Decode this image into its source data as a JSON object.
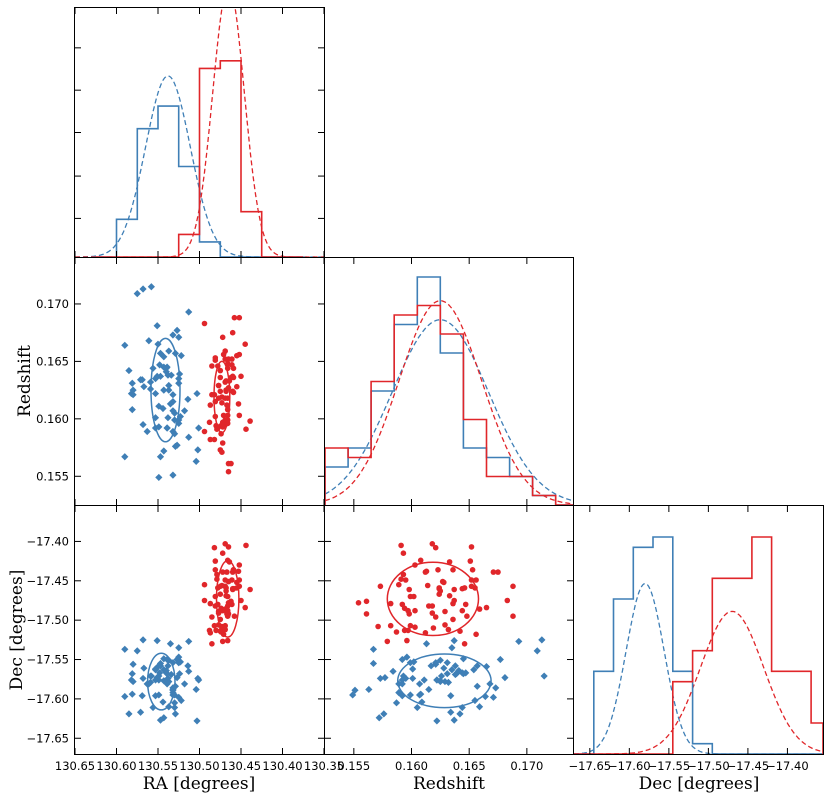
{
  "chart_data": {
    "type": "corner_plot",
    "description": "Triangle plot of RA, Redshift and Dec for two galaxy populations",
    "colors": {
      "blue": "#3f7fb6",
      "red": "#e0262a"
    },
    "axes": {
      "ra": {
        "label": "RA [degrees]",
        "range": [
          130.65,
          130.35
        ],
        "ticks": [
          130.65,
          130.6,
          130.55,
          130.5,
          130.45,
          130.4,
          130.35
        ],
        "tick_labels": [
          "130.65",
          "130.60",
          "130.55",
          "130.50",
          "130.45",
          "130.40",
          "130.35"
        ]
      },
      "z": {
        "label": "Redshift",
        "range": [
          0.1525,
          0.174
        ],
        "ticks": [
          0.155,
          0.16,
          0.165,
          0.17
        ],
        "tick_labels": [
          "0.155",
          "0.160",
          "0.165",
          "0.170"
        ]
      },
      "dec": {
        "label": "Dec [degrees]",
        "range": [
          -17.67,
          -17.355
        ],
        "ticks": [
          -17.65,
          -17.6,
          -17.55,
          -17.5,
          -17.45,
          -17.4
        ],
        "tick_labels": [
          "−17.65",
          "−17.60",
          "−17.55",
          "−17.50",
          "−17.45",
          "−17.40"
        ]
      }
    },
    "ra_hist": {
      "bin_edges": [
        130.625,
        130.6,
        130.575,
        130.55,
        130.525,
        130.5,
        130.475,
        130.45,
        130.425,
        130.4,
        130.375
      ],
      "blue": [
        0,
        5,
        17,
        20,
        12,
        2,
        0,
        0,
        0,
        0
      ],
      "red": [
        0,
        0,
        0,
        0,
        3,
        25,
        26,
        6,
        0,
        0
      ],
      "ymax": 33,
      "blue_gauss": {
        "mu": 130.538,
        "sigma": 0.027,
        "peak": 24
      },
      "red_gauss": {
        "mu": 130.465,
        "sigma": 0.019,
        "peak": 36
      }
    },
    "z_hist": {
      "bin_edges": [
        0.1525,
        0.1545,
        0.1565,
        0.1585,
        0.1605,
        0.1625,
        0.1645,
        0.1665,
        0.1685,
        0.1705,
        0.1725,
        0.174
      ],
      "blue": [
        4,
        6,
        12,
        19,
        24,
        16,
        6,
        5,
        3,
        1,
        0
      ],
      "red": [
        6,
        5,
        13,
        20,
        21,
        18,
        9,
        3,
        3,
        1,
        0
      ],
      "ymax": 26,
      "blue_gauss": {
        "mu": 0.1625,
        "sigma": 0.0042,
        "peak": 19.5
      },
      "red_gauss": {
        "mu": 0.1625,
        "sigma": 0.0036,
        "peak": 21.5
      }
    },
    "dec_hist": {
      "bin_edges": [
        -17.67,
        -17.645,
        -17.62,
        -17.595,
        -17.57,
        -17.545,
        -17.52,
        -17.495,
        -17.47,
        -17.445,
        -17.42,
        -17.395,
        -17.37,
        -17.355
      ],
      "blue": [
        0,
        8,
        15,
        20,
        21,
        8,
        1,
        0,
        0,
        0,
        0,
        0,
        0
      ],
      "red": [
        0,
        0,
        0,
        0,
        0,
        7,
        10,
        17,
        17,
        21,
        8,
        8,
        3
      ],
      "ymax": 24,
      "blue_gauss": {
        "mu": -17.58,
        "sigma": 0.024,
        "peak": 16.5
      },
      "red_gauss": {
        "mu": -17.47,
        "sigma": 0.04,
        "peak": 13.8
      }
    },
    "ellipses": {
      "ra_z": {
        "blue": {
          "cx": 130.541,
          "cy": 0.1625,
          "rx": 0.0175,
          "ry": 0.0045
        },
        "red": {
          "cx": 130.473,
          "cy": 0.1619,
          "rx": 0.0095,
          "ry": 0.0031
        }
      },
      "ra_dec": {
        "blue": {
          "cx": 130.546,
          "cy": -17.578,
          "rx": 0.0165,
          "ry": 0.036
        },
        "red": {
          "cx": 130.466,
          "cy": -17.473,
          "rx": 0.0135,
          "ry": 0.0485
        }
      },
      "z_dec": {
        "blue": {
          "cx": 0.16285,
          "cy": -17.577,
          "rx": 0.00405,
          "ry": 0.034
        },
        "red": {
          "cx": 0.16185,
          "cy": -17.473,
          "rx": 0.00395,
          "ry": 0.0465
        }
      }
    },
    "points": {
      "blue": [
        [
          130.568,
          0.1713,
          -17.525
        ],
        [
          130.551,
          0.1681,
          -17.573
        ],
        [
          130.581,
          0.1631,
          -17.568
        ],
        [
          130.553,
          0.1601,
          -17.562
        ],
        [
          130.58,
          0.1621,
          -17.556
        ],
        [
          130.553,
          0.1635,
          -17.563
        ],
        [
          130.559,
          0.1626,
          -17.571
        ],
        [
          130.559,
          0.1632,
          -17.579
        ],
        [
          130.569,
          0.1634,
          -17.596
        ],
        [
          130.527,
          0.1677,
          -17.55
        ],
        [
          130.532,
          0.1673,
          -17.586
        ],
        [
          130.532,
          0.1551,
          -17.589
        ],
        [
          130.547,
          0.1567,
          -17.555
        ],
        [
          130.538,
          0.1638,
          -17.558
        ],
        [
          130.525,
          0.1671,
          -17.598
        ],
        [
          130.549,
          0.1549,
          -17.595
        ],
        [
          130.502,
          0.1573,
          -17.574
        ],
        [
          130.524,
          0.1639,
          -17.568
        ],
        [
          130.529,
          0.1576,
          -17.619
        ],
        [
          130.532,
          0.1621,
          -17.554
        ],
        [
          130.568,
          0.1595,
          -17.574
        ],
        [
          130.518,
          0.1607,
          -17.581
        ],
        [
          130.59,
          0.1567,
          -17.537
        ],
        [
          130.553,
          0.1592,
          -17.596
        ],
        [
          130.537,
          0.1629,
          -17.578
        ],
        [
          130.548,
          0.1647,
          -17.567
        ],
        [
          130.585,
          0.1642,
          -17.619
        ],
        [
          130.549,
          0.1611,
          -17.576
        ],
        [
          130.532,
          0.1589,
          -17.592
        ],
        [
          130.553,
          0.1622,
          -17.576
        ],
        [
          130.525,
          0.1599,
          -17.554
        ],
        [
          130.551,
          0.1637,
          -17.526
        ],
        [
          130.53,
          0.1605,
          -17.611
        ],
        [
          130.503,
          0.1622,
          -17.628
        ],
        [
          130.571,
          0.1634,
          -17.617
        ],
        [
          130.556,
          0.1644,
          -17.611
        ],
        [
          130.532,
          0.1615,
          -17.588
        ],
        [
          130.535,
          0.1613,
          -17.53
        ],
        [
          130.547,
          0.1637,
          -17.627
        ],
        [
          130.567,
          0.1628,
          -17.561
        ],
        [
          130.534,
          0.1638,
          -17.569
        ],
        [
          130.514,
          0.1617,
          -17.558
        ],
        [
          130.543,
          0.1645,
          -17.549
        ],
        [
          130.523,
          0.1602,
          -17.553
        ],
        [
          130.532,
          0.1607,
          -17.595
        ],
        [
          130.53,
          0.1587,
          -17.605
        ],
        [
          130.513,
          0.1584,
          -17.565
        ],
        [
          130.522,
          0.1655,
          -17.602
        ],
        [
          130.561,
          0.1668,
          -17.581
        ],
        [
          130.59,
          0.1664,
          -17.597
        ],
        [
          130.582,
          0.1622,
          -17.576
        ],
        [
          130.525,
          0.1596,
          -17.547
        ],
        [
          130.537,
          0.1659,
          -17.61
        ],
        [
          130.563,
          0.1589,
          -17.581
        ],
        [
          130.581,
          0.1608,
          -17.594
        ],
        [
          130.525,
          0.1635,
          -17.535
        ],
        [
          130.504,
          0.1563,
          -17.588
        ],
        [
          130.543,
          0.1572,
          -17.624
        ],
        [
          130.538,
          0.1601,
          -17.574
        ],
        [
          130.54,
          0.1641,
          -17.564
        ],
        [
          130.539,
          0.1592,
          -17.55
        ],
        [
          130.537,
          0.1625,
          -17.551
        ],
        [
          130.543,
          0.1654,
          -17.563
        ],
        [
          130.549,
          0.1593,
          -17.571
        ],
        [
          130.575,
          0.1709,
          -17.539
        ],
        [
          130.58,
          0.1625,
          -17.578
        ],
        [
          130.53,
          0.1599,
          -17.595
        ],
        [
          130.543,
          0.1625,
          -17.577
        ],
        [
          130.539,
          0.1592,
          -17.581
        ],
        [
          130.529,
          0.1657,
          -17.584
        ],
        [
          130.513,
          0.1693,
          -17.527
        ],
        [
          130.527,
          0.1577,
          -17.573
        ],
        [
          130.525,
          0.1631,
          -17.554
        ],
        [
          130.544,
          0.1609,
          -17.604
        ],
        [
          130.54,
          0.1644,
          -17.567
        ],
        [
          130.547,
          0.1657,
          -17.558
        ],
        [
          130.501,
          0.1592,
          -17.576
        ],
        [
          130.558,
          0.1715,
          -17.571
        ],
        [
          130.539,
          0.1645,
          -17.568
        ],
        [
          130.55,
          0.1665,
          -17.559
        ]
      ],
      "red": [
        [
          130.452,
          0.1656,
          -17.449
        ],
        [
          130.439,
          0.1598,
          -17.461
        ],
        [
          130.46,
          0.1637,
          -17.461
        ],
        [
          130.452,
          0.1603,
          -17.43
        ],
        [
          130.482,
          0.1621,
          -17.408
        ],
        [
          130.481,
          0.1651,
          -17.425
        ],
        [
          130.459,
          0.1644,
          -17.46
        ],
        [
          130.458,
          0.1688,
          -17.495
        ],
        [
          130.494,
          0.1589,
          -17.455
        ],
        [
          130.453,
          0.1613,
          -17.438
        ],
        [
          130.46,
          0.1675,
          -17.439
        ],
        [
          130.494,
          0.1683,
          -17.475
        ],
        [
          130.481,
          0.1653,
          -17.436
        ],
        [
          130.455,
          0.1655,
          -17.459
        ],
        [
          130.461,
          0.1652,
          -17.449
        ],
        [
          130.466,
          0.1618,
          -17.482
        ],
        [
          130.468,
          0.1633,
          -17.469
        ],
        [
          130.482,
          0.1582,
          -17.507
        ],
        [
          130.485,
          0.1621,
          -17.496
        ],
        [
          130.473,
          0.1619,
          -17.51
        ],
        [
          130.469,
          0.1595,
          -17.449
        ],
        [
          130.475,
          0.1624,
          -17.467
        ],
        [
          130.466,
          0.1648,
          -17.495
        ],
        [
          130.479,
          0.1593,
          -17.442
        ],
        [
          130.452,
          0.1688,
          -17.457
        ],
        [
          130.48,
          0.1594,
          -17.513
        ],
        [
          130.473,
          0.1571,
          -17.508
        ],
        [
          130.488,
          0.1597,
          -17.513
        ],
        [
          130.475,
          0.1573,
          -17.457
        ],
        [
          130.444,
          0.1591,
          -17.405
        ],
        [
          130.462,
          0.1561,
          -17.476
        ],
        [
          130.469,
          0.1652,
          -17.457
        ],
        [
          130.487,
          0.1612,
          -17.516
        ],
        [
          130.46,
          0.1624,
          -17.46
        ],
        [
          130.471,
          0.1603,
          -17.509
        ],
        [
          130.478,
          0.1646,
          -17.459
        ],
        [
          130.472,
          0.1579,
          -17.527
        ],
        [
          130.487,
          0.1582,
          -17.479
        ],
        [
          130.477,
          0.1629,
          -17.506
        ],
        [
          130.471,
          0.1656,
          -17.518
        ],
        [
          130.465,
          0.1652,
          -17.407
        ],
        [
          130.459,
          0.1623,
          -17.436
        ],
        [
          130.474,
          0.1594,
          -17.485
        ],
        [
          130.479,
          0.1591,
          -17.448
        ],
        [
          130.461,
          0.1647,
          -17.48
        ],
        [
          130.472,
          0.1593,
          -17.415
        ],
        [
          130.474,
          0.1587,
          -17.515
        ],
        [
          130.467,
          0.1598,
          -17.492
        ],
        [
          130.475,
          0.1636,
          -17.499
        ],
        [
          130.466,
          0.1603,
          -17.488
        ],
        [
          130.45,
          0.1637,
          -17.475
        ],
        [
          130.481,
          0.1615,
          -17.482
        ],
        [
          130.469,
          0.1659,
          -17.486
        ],
        [
          130.462,
          0.1636,
          -17.479
        ],
        [
          130.473,
          0.1614,
          -17.456
        ],
        [
          130.477,
          0.1618,
          -17.491
        ],
        [
          130.466,
          0.1596,
          -17.526
        ],
        [
          130.459,
          0.1636,
          -17.436
        ],
        [
          130.481,
          0.1602,
          -17.47
        ],
        [
          130.466,
          0.1644,
          -17.488
        ],
        [
          130.445,
          0.1665,
          -17.484
        ],
        [
          130.465,
          0.1627,
          -17.451
        ],
        [
          130.472,
          0.1597,
          -17.488
        ],
        [
          130.478,
          0.1592,
          -17.48
        ],
        [
          130.475,
          0.1642,
          -17.514
        ],
        [
          130.469,
          0.1618,
          -17.403
        ],
        [
          130.472,
          0.1671,
          -17.439
        ],
        [
          130.468,
          0.1625,
          -17.463
        ],
        [
          130.466,
          0.1608,
          -17.424
        ],
        [
          130.477,
          0.1629,
          -17.489
        ],
        [
          130.485,
          0.1646,
          -17.53
        ],
        [
          130.469,
          0.1632,
          -17.512
        ],
        [
          130.465,
          0.1554,
          -17.478
        ],
        [
          130.468,
          0.1624,
          -17.459
        ],
        [
          130.466,
          0.1599,
          -17.47
        ],
        [
          130.464,
          0.1633,
          -17.426
        ],
        [
          130.455,
          0.1628,
          -17.452
        ],
        [
          130.467,
          0.1612,
          -17.439
        ],
        [
          130.465,
          0.1561,
          -17.492
        ],
        [
          130.469,
          0.1599,
          -17.507
        ]
      ]
    }
  }
}
